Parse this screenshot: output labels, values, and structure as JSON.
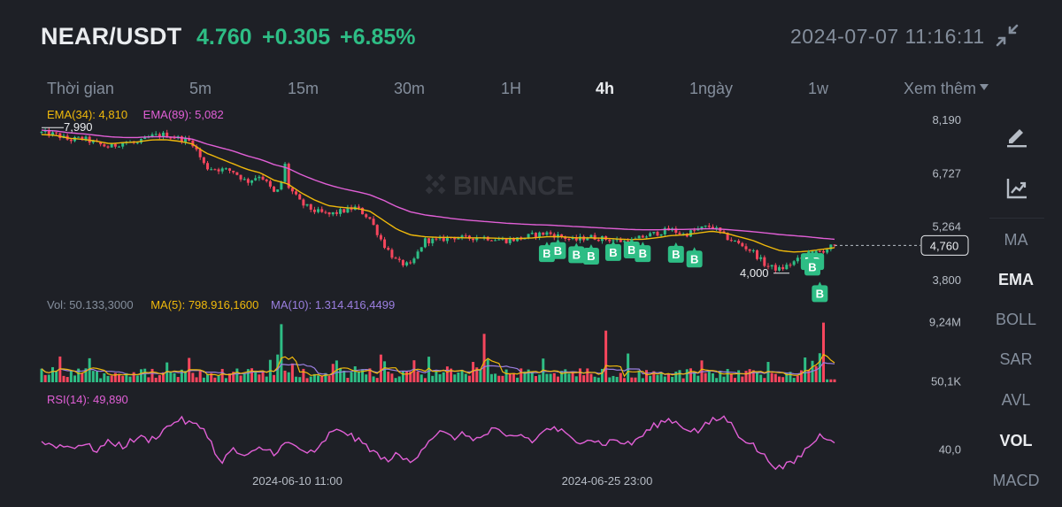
{
  "header": {
    "pair": "NEAR/USDT",
    "price": "4.760",
    "change": "+0.305",
    "change_pct": "+6.85%",
    "datetime": "2024-07-07 11:16:11"
  },
  "tabs": [
    {
      "label": "Thời gian",
      "active": false
    },
    {
      "label": "5m",
      "active": false
    },
    {
      "label": "15m",
      "active": false
    },
    {
      "label": "30m",
      "active": false
    },
    {
      "label": "1H",
      "active": false
    },
    {
      "label": "4h",
      "active": true
    },
    {
      "label": "1ngày",
      "active": false
    },
    {
      "label": "1w",
      "active": false
    },
    {
      "label": "Xem thêm",
      "active": false
    }
  ],
  "right_panel": {
    "indicators": [
      {
        "label": "MA",
        "active": false
      },
      {
        "label": "EMA",
        "active": true
      },
      {
        "label": "BOLL",
        "active": false
      },
      {
        "label": "SAR",
        "active": false
      },
      {
        "label": "AVL",
        "active": false
      },
      {
        "label": "VOL",
        "active": true
      },
      {
        "label": "MACD",
        "active": false
      }
    ],
    "icons": [
      "draw-pen-icon",
      "chart-trend-icon"
    ]
  },
  "colors": {
    "up": "#2ebd85",
    "down": "#f6465d",
    "ema34": "#f0b90b",
    "ema89": "#e15fd6",
    "ma5": "#f0b90b",
    "ma10": "#9b7fe0",
    "rsi": "#e15fd6",
    "buy_marker": "#2ebd85"
  },
  "chart_data": [
    {
      "type": "candlestick",
      "panel": "price",
      "watermark": "BINANCE",
      "legend": [
        {
          "label": "EMA(34): 4,810",
          "color": "#f0b90b"
        },
        {
          "label": "EMA(89): 5,082",
          "color": "#e15fd6"
        }
      ],
      "y_ticks": [
        "8,190",
        "6,727",
        "5,264",
        "3,800"
      ],
      "y_tick_values": [
        8.19,
        6.727,
        5.264,
        3.8
      ],
      "ylim": [
        3.8,
        8.19
      ],
      "current_price": 4.76,
      "current_price_label": "4,760",
      "high_label": "7,990",
      "high_value": 7.99,
      "low_label": "4,000",
      "low_value": 4.0,
      "x_ticks": [
        "2024-06-10 11:00",
        "2024-06-25 23:00"
      ],
      "close_anchors": [
        7.85,
        7.8,
        7.65,
        7.7,
        7.55,
        7.45,
        7.6,
        7.55,
        7.75,
        7.8,
        7.7,
        7.6,
        6.9,
        6.85,
        6.8,
        6.5,
        6.7,
        6.2,
        6.4,
        5.9,
        5.7,
        5.6,
        5.7,
        5.8,
        5.5,
        4.8,
        4.3,
        4.2,
        4.9,
        4.9,
        5.0,
        4.95,
        5.0,
        4.95,
        4.9,
        4.95,
        5.05,
        5.1,
        5.0,
        4.9,
        5.0,
        4.95,
        4.9,
        4.85,
        5.0,
        5.1,
        5.2,
        5.05,
        5.2,
        5.3,
        5.0,
        4.8,
        4.6,
        4.2,
        4.1,
        4.3,
        4.5,
        4.6,
        4.76
      ],
      "ema34_anchors": [
        7.8,
        7.78,
        7.7,
        7.67,
        7.62,
        7.55,
        7.58,
        7.6,
        7.65,
        7.66,
        7.62,
        7.55,
        7.3,
        7.15,
        7.0,
        6.85,
        6.75,
        6.55,
        6.45,
        6.2,
        6.0,
        5.85,
        5.8,
        5.78,
        5.7,
        5.45,
        5.2,
        5.05,
        5.0,
        4.98,
        4.98,
        4.97,
        4.97,
        4.96,
        4.95,
        4.95,
        4.97,
        5.0,
        5.0,
        4.97,
        4.97,
        4.96,
        4.94,
        4.92,
        4.93,
        4.97,
        5.03,
        5.05,
        5.1,
        5.15,
        5.1,
        5.0,
        4.9,
        4.75,
        4.62,
        4.58,
        4.6,
        4.65,
        4.7
      ],
      "ema89_anchors": [
        7.92,
        7.9,
        7.85,
        7.82,
        7.78,
        7.74,
        7.72,
        7.72,
        7.74,
        7.74,
        7.72,
        7.68,
        7.55,
        7.45,
        7.35,
        7.22,
        7.12,
        6.98,
        6.88,
        6.7,
        6.55,
        6.42,
        6.32,
        6.24,
        6.15,
        6.0,
        5.82,
        5.68,
        5.6,
        5.55,
        5.5,
        5.46,
        5.43,
        5.4,
        5.37,
        5.35,
        5.33,
        5.32,
        5.3,
        5.28,
        5.26,
        5.24,
        5.22,
        5.2,
        5.19,
        5.19,
        5.2,
        5.2,
        5.21,
        5.22,
        5.2,
        5.17,
        5.14,
        5.1,
        5.06,
        5.03,
        5.0,
        4.96,
        4.93
      ],
      "buy_markers": [
        {
          "label": "B",
          "bar": 137,
          "price": 4.55
        },
        {
          "label": "B",
          "bar": 140,
          "price": 4.63
        },
        {
          "label": "B",
          "bar": 145,
          "price": 4.52
        },
        {
          "label": "B",
          "bar": 149,
          "price": 4.48
        },
        {
          "label": "B",
          "bar": 155,
          "price": 4.58
        },
        {
          "label": "B",
          "bar": 160,
          "price": 4.65
        },
        {
          "label": "B",
          "bar": 163,
          "price": 4.55
        },
        {
          "label": "B",
          "bar": 172,
          "price": 4.53
        },
        {
          "label": "B",
          "bar": 177,
          "price": 4.4
        },
        {
          "label": "B",
          "bar": 208,
          "price": 4.33
        },
        {
          "label": "B",
          "bar": 210,
          "price": 4.33
        },
        {
          "label": "B",
          "bar": 209,
          "price": 4.18
        },
        {
          "label": "B",
          "bar": 211,
          "price": 3.45
        }
      ]
    },
    {
      "type": "bar",
      "panel": "volume",
      "legend": [
        {
          "label": "Vol: 50.133,3000",
          "color": "#848e9c"
        },
        {
          "label": "MA(5): 798.916,1600",
          "color": "#f0b90b"
        },
        {
          "label": "MA(10): 1.314.416,4499",
          "color": "#9b7fe0"
        }
      ],
      "y_ticks": [
        "9,24M",
        "50,1K"
      ],
      "y_tick_values": [
        9.24,
        0.05
      ],
      "ylim": [
        0,
        9.6
      ],
      "spikes": [
        {
          "bar": 65,
          "value": 9.0
        },
        {
          "bar": 120,
          "value": 7.5
        },
        {
          "bar": 153,
          "value": 8.0
        },
        {
          "bar": 212,
          "value": 9.24
        }
      ]
    },
    {
      "type": "line",
      "panel": "rsi",
      "legend": [
        {
          "label": "RSI(14): 49,890",
          "color": "#e15fd6"
        }
      ],
      "y_ticks": [
        "40,0"
      ],
      "y_tick_values": [
        40
      ],
      "ylim": [
        15,
        85
      ],
      "rsi_anchors": [
        47,
        45,
        43,
        46,
        40,
        48,
        44,
        52,
        50,
        60,
        70,
        65,
        60,
        28,
        40,
        33,
        42,
        38,
        47,
        40,
        36,
        55,
        60,
        50,
        42,
        30,
        35,
        28,
        45,
        58,
        52,
        55,
        50,
        60,
        52,
        55,
        48,
        62,
        58,
        48,
        52,
        46,
        50,
        45,
        55,
        65,
        70,
        62,
        58,
        68,
        72,
        55,
        45,
        32,
        22,
        28,
        42,
        55,
        50
      ]
    }
  ]
}
